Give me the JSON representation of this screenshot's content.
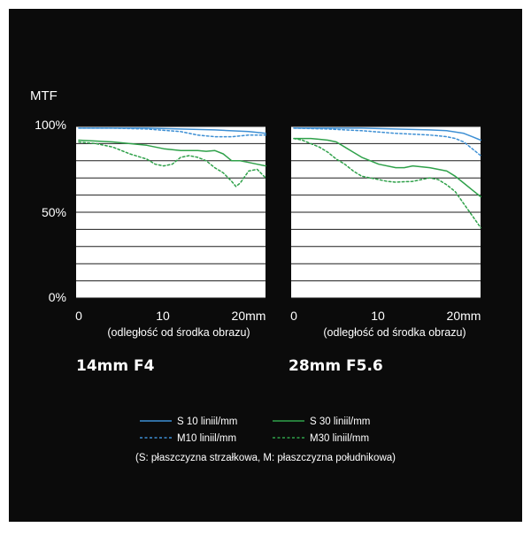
{
  "y_axis_label": "MTF",
  "y_ticks": [
    {
      "label": "100%",
      "value": 100
    },
    {
      "label": "50%",
      "value": 50
    },
    {
      "label": "0%",
      "value": 0
    }
  ],
  "x_ticks": [
    {
      "label": "0",
      "value": 0
    },
    {
      "label": "10",
      "value": 10
    },
    {
      "label": "20mm",
      "value": 20
    }
  ],
  "x_axis_label": "(odległość od środka obrazu)",
  "legend": {
    "s10": "S 10 liniil/mm",
    "m10": "M10 liniil/mm",
    "s30": "S 30 liniil/mm",
    "m30": "M30 liniil/mm",
    "note": "(S: płaszczyzna strzałkowa, M: płaszczyzna południkowa)"
  },
  "colors": {
    "background": "#0b0b0b",
    "panel": "#ffffff",
    "grid": "#1e1e1e",
    "text": "#ffffff",
    "blue": "#3d8fd4",
    "green": "#2fa14a"
  },
  "chart_data": [
    {
      "type": "line",
      "title": "14mm F4",
      "xlabel": "(odległość od środka obrazu)",
      "ylabel": "MTF",
      "xlim": [
        0,
        22
      ],
      "ylim": [
        0,
        100
      ],
      "series": [
        {
          "name": "S 10 liniil/mm",
          "color": "#3d8fd4",
          "dashed": false,
          "x": [
            0,
            4,
            8,
            12,
            16,
            20,
            22
          ],
          "y": [
            99,
            99,
            99,
            98.5,
            98,
            97,
            96
          ]
        },
        {
          "name": "M10 liniil/mm",
          "color": "#3d8fd4",
          "dashed": true,
          "x": [
            0,
            4,
            8,
            12,
            14,
            16,
            18,
            20,
            22
          ],
          "y": [
            99,
            99,
            98.5,
            97,
            95,
            94,
            94,
            95,
            95
          ]
        },
        {
          "name": "S 30 liniil/mm",
          "color": "#2fa14a",
          "dashed": false,
          "x": [
            0,
            2,
            4,
            6,
            8,
            10,
            12,
            14,
            15,
            16,
            17,
            18,
            19,
            20,
            21,
            22
          ],
          "y": [
            92,
            91.5,
            91,
            90,
            89,
            87,
            86,
            86,
            85.5,
            86,
            84,
            80,
            80,
            79,
            78,
            77
          ]
        },
        {
          "name": "M30 liniil/mm",
          "color": "#2fa14a",
          "dashed": true,
          "x": [
            0,
            2,
            4,
            6,
            8,
            9,
            10,
            11,
            12,
            13,
            14,
            15,
            16,
            17,
            18,
            18.5,
            19,
            20,
            21,
            22
          ],
          "y": [
            91,
            90,
            88,
            84,
            81,
            78,
            77,
            78,
            82,
            83,
            82,
            80,
            76,
            73,
            68,
            65,
            67,
            74,
            75,
            70
          ]
        }
      ]
    },
    {
      "type": "line",
      "title": "28mm F5.6",
      "xlabel": "(odległość od środka obrazu)",
      "ylabel": "MTF",
      "xlim": [
        0,
        22
      ],
      "ylim": [
        0,
        100
      ],
      "series": [
        {
          "name": "S 10 liniil/mm",
          "color": "#3d8fd4",
          "dashed": false,
          "x": [
            0,
            4,
            8,
            12,
            16,
            18,
            20,
            21,
            22
          ],
          "y": [
            99,
            99,
            99,
            98.5,
            98,
            97.5,
            96,
            94,
            92
          ]
        },
        {
          "name": "M10 liniil/mm",
          "color": "#3d8fd4",
          "dashed": true,
          "x": [
            0,
            4,
            8,
            12,
            16,
            18,
            19,
            20,
            21,
            22
          ],
          "y": [
            99,
            98.5,
            97.5,
            96,
            95,
            94,
            93,
            91,
            87,
            83
          ]
        },
        {
          "name": "S 30 liniil/mm",
          "color": "#2fa14a",
          "dashed": false,
          "x": [
            0,
            2,
            3,
            4,
            5,
            6,
            7,
            8,
            9,
            10,
            12,
            13,
            14,
            16,
            18,
            19,
            20,
            21,
            22
          ],
          "y": [
            93,
            93,
            92.5,
            92,
            91,
            88,
            85,
            82,
            80,
            78,
            76,
            76,
            77,
            76,
            74,
            71,
            67,
            63,
            59
          ]
        },
        {
          "name": "M30 liniil/mm",
          "color": "#2fa14a",
          "dashed": true,
          "x": [
            0,
            1,
            2,
            3,
            4,
            5,
            6,
            7,
            8,
            9,
            10,
            11,
            12,
            14,
            16,
            17,
            18,
            19,
            20,
            21,
            22
          ],
          "y": [
            93,
            92,
            90,
            88,
            85,
            81,
            78,
            74,
            71,
            70,
            69,
            68,
            67.5,
            68,
            70,
            69,
            66,
            62,
            55,
            48,
            41
          ]
        }
      ]
    }
  ]
}
